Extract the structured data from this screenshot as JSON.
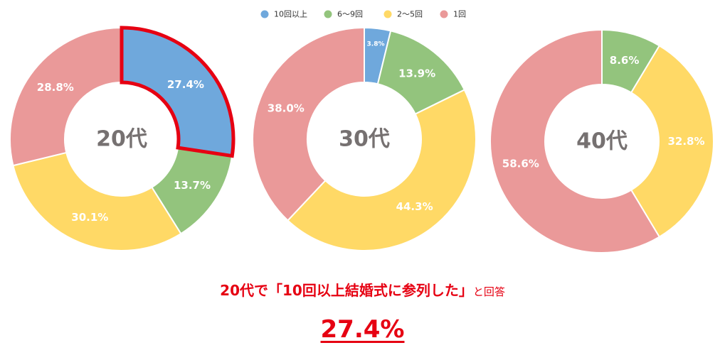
{
  "colors": {
    "10回以上": "#6fa8dc",
    "6〜9回": "#93c47d",
    "2〜5回": "#ffd966",
    "1回": "#ea9999",
    "highlight": "#e60012",
    "center_text": "#767171"
  },
  "chart_data": {
    "type": "donut",
    "legend_position": "top",
    "categories": [
      "10回以上",
      "6〜9回",
      "2〜5回",
      "1回"
    ],
    "charts": [
      {
        "center_label": "20代",
        "values": [
          27.4,
          13.7,
          30.1,
          28.8
        ],
        "labels": [
          "27.4%",
          "13.7%",
          "30.1%",
          "28.8%"
        ],
        "highlighted": "10回以上"
      },
      {
        "center_label": "30代",
        "values": [
          3.8,
          13.9,
          44.3,
          38.0
        ],
        "labels": [
          "3.8%",
          "13.9%",
          "44.3%",
          "38.0%"
        ]
      },
      {
        "center_label": "40代",
        "values": [
          0,
          8.6,
          32.8,
          58.6
        ],
        "labels": [
          "",
          "8.6%",
          "32.8%",
          "58.6%"
        ]
      }
    ]
  },
  "caption": {
    "main": "20代で「10回以上結婚式に参列した」",
    "suffix": "と回答"
  },
  "highlight_value": "27.4%"
}
